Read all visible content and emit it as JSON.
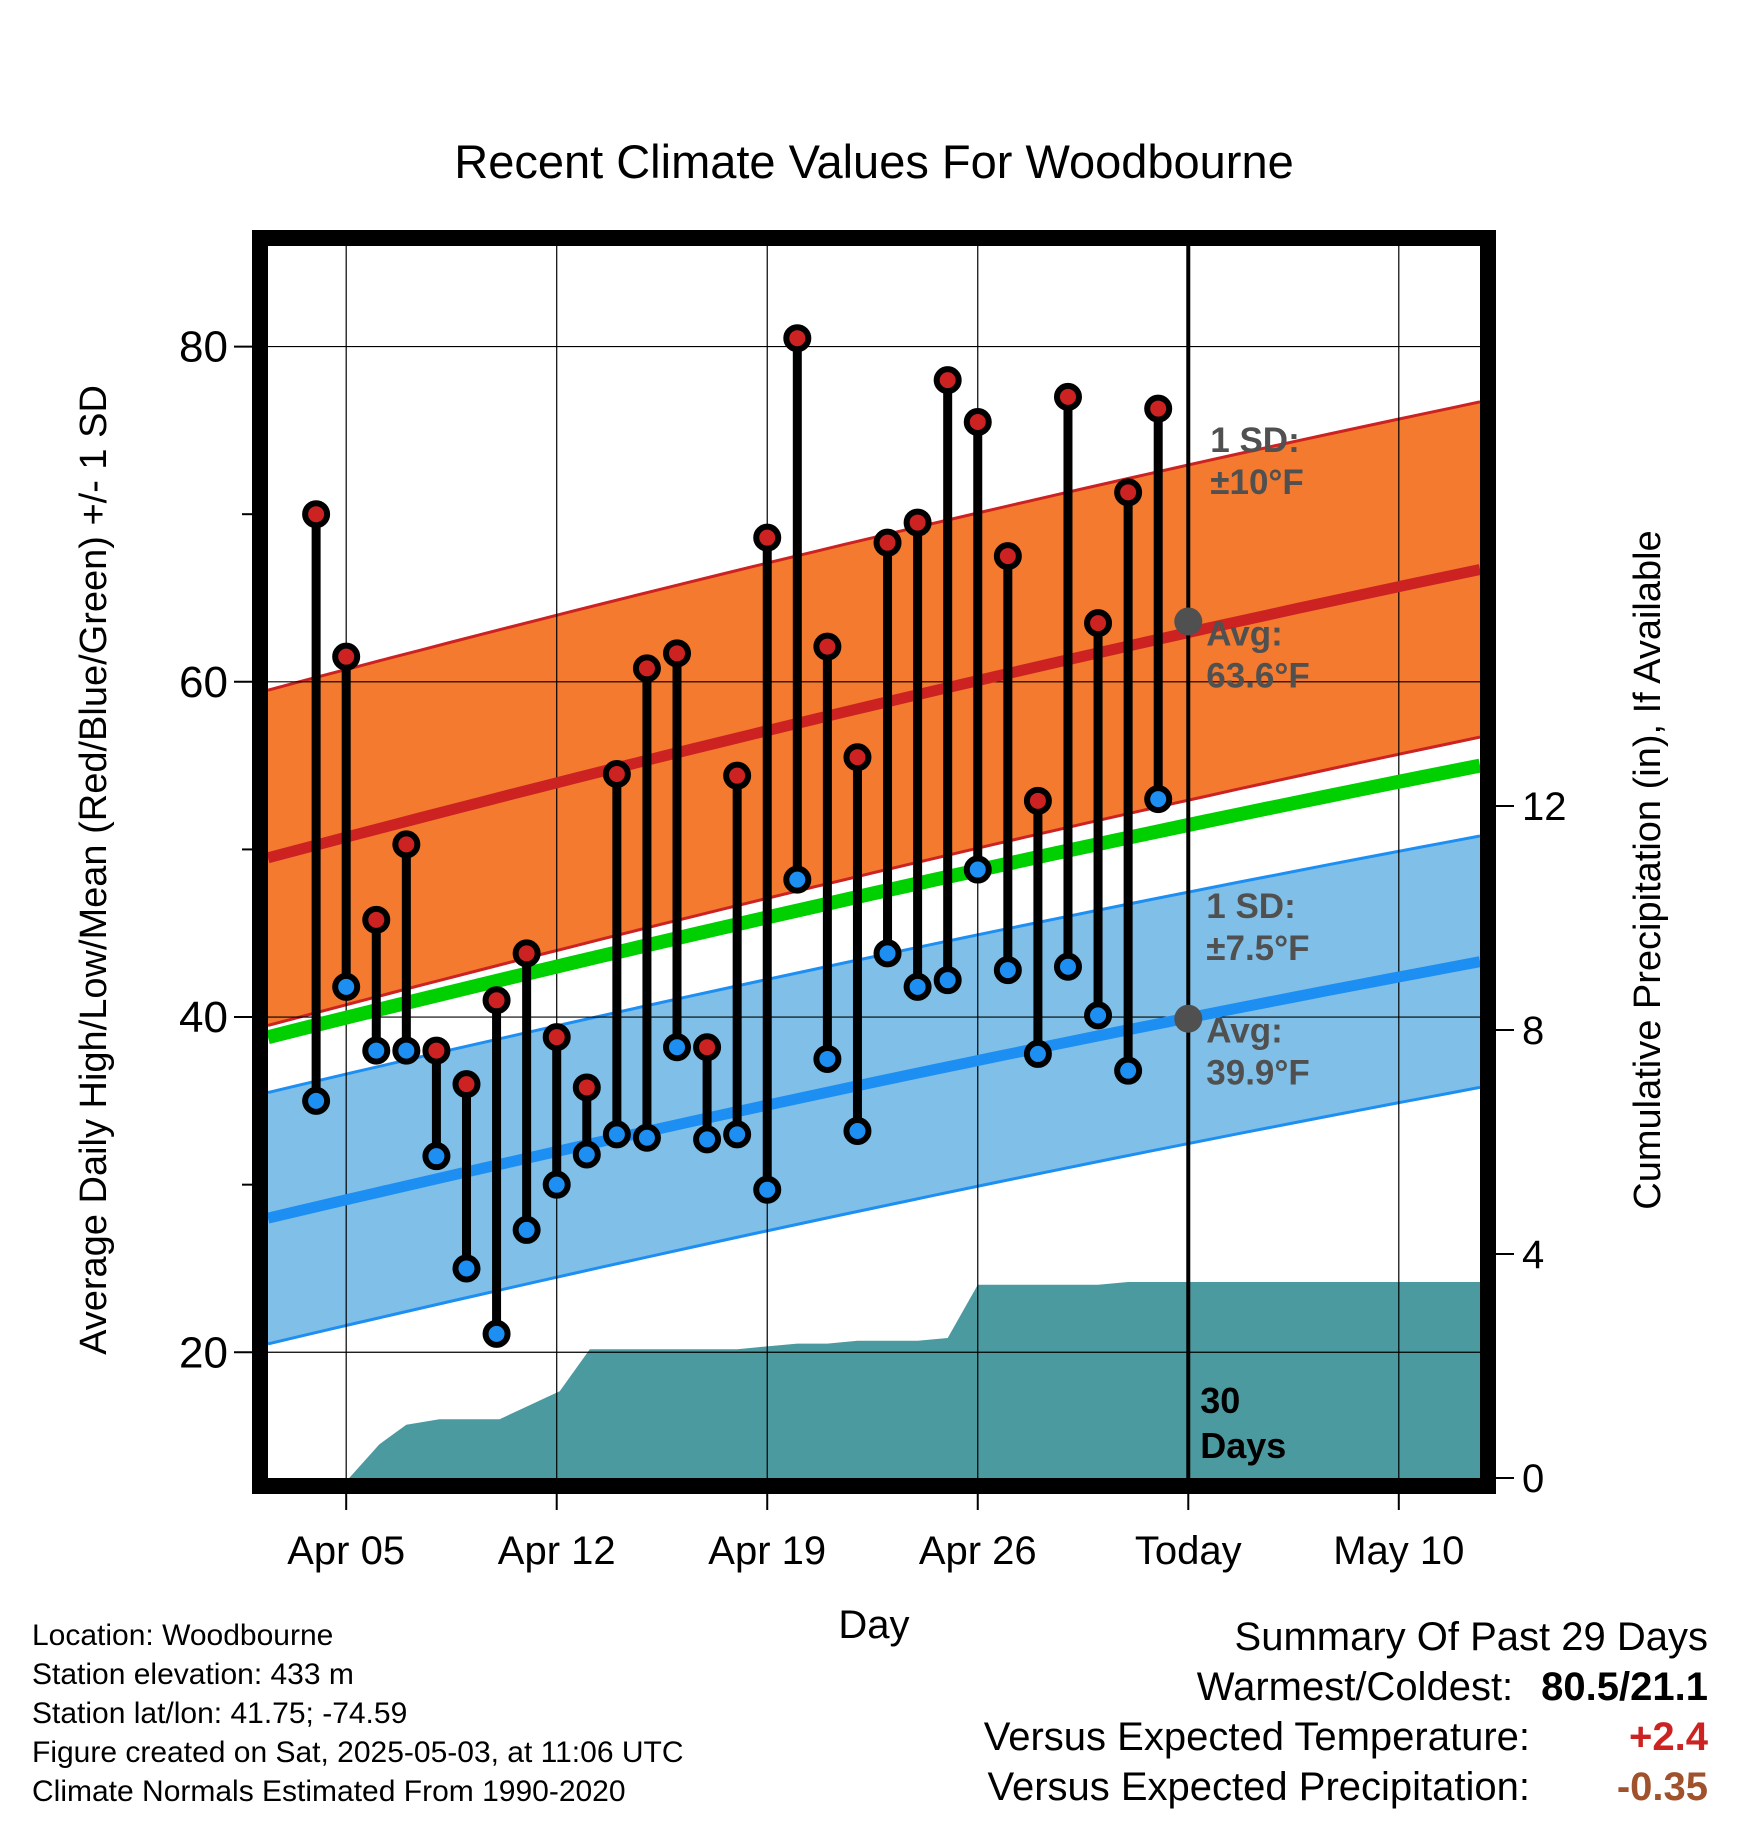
{
  "chart_data": {
    "type": "line",
    "title": "Recent Climate Values For Woodbourne",
    "xlabel": "Day",
    "ylabel": "Average Daily High/Low/Mean (Red/Blue/Green) +/- 1 SD",
    "y2label": "Cumulative Precipitation (in), If Available",
    "x_tick_labels": [
      "Apr 05",
      "Apr 12",
      "Apr 19",
      "Apr 26",
      "Today",
      "May 10"
    ],
    "x_tick_days": [
      2,
      9,
      16,
      23,
      30,
      37
    ],
    "xlim_days": [
      -0.6,
      39.7
    ],
    "ylim": [
      12.5,
      86
    ],
    "y_ticks": [
      20,
      40,
      60,
      80
    ],
    "y_minor_ticks": [
      30,
      50,
      70
    ],
    "y2lim": [
      0,
      22
    ],
    "y2_ticks": [
      0,
      4,
      8,
      12
    ],
    "today_day": 30,
    "today_label": [
      "30",
      "Days"
    ],
    "normals": {
      "high_mean": [
        49.5,
        66.7
      ],
      "high_sd": 10,
      "low_mean": [
        28.0,
        43.3
      ],
      "low_sd": 7.5,
      "mean": [
        38.8,
        55.0
      ]
    },
    "annotations": {
      "high_sd": [
        "1 SD:",
        "±10°F"
      ],
      "high_avg": [
        "Avg:",
        "63.6°F"
      ],
      "low_sd": [
        "1 SD:",
        "±7.5°F"
      ],
      "low_avg": [
        "Avg:",
        "39.9°F"
      ],
      "high_avg_value": 63.6,
      "low_avg_value": 39.9
    },
    "daily_high": [
      70.0,
      61.5,
      45.8,
      50.3,
      38.0,
      36.0,
      41.0,
      43.8,
      38.8,
      35.8,
      54.5,
      60.8,
      61.7,
      38.2,
      54.4,
      68.6,
      80.5,
      62.1,
      55.5,
      68.3,
      69.5,
      78.0,
      75.5,
      67.5,
      52.9,
      77.0,
      63.5,
      71.3,
      76.3
    ],
    "daily_low": [
      35.0,
      41.8,
      38.0,
      38.0,
      31.7,
      25.0,
      21.1,
      27.3,
      30.0,
      31.8,
      33.0,
      32.8,
      38.2,
      32.7,
      33.0,
      29.7,
      48.2,
      37.5,
      33.2,
      43.8,
      41.8,
      42.2,
      48.8,
      42.8,
      37.8,
      43.0,
      40.1,
      36.8,
      53.0
    ],
    "precip_x": [
      0,
      2.1,
      3.1,
      4.0,
      5.1,
      6.1,
      7.1,
      8.1,
      9.1,
      10.1,
      11,
      12,
      13,
      14,
      15,
      16,
      17,
      18,
      19,
      20,
      21,
      22,
      23,
      24,
      25,
      26,
      27,
      28,
      29,
      30,
      39.7
    ],
    "precip_cum": [
      0,
      0,
      0.6,
      0.95,
      1.05,
      1.05,
      1.05,
      1.3,
      1.55,
      2.3,
      2.3,
      2.3,
      2.3,
      2.3,
      2.3,
      2.35,
      2.4,
      2.4,
      2.45,
      2.45,
      2.45,
      2.5,
      3.45,
      3.45,
      3.45,
      3.45,
      3.45,
      3.5,
      3.5,
      3.5,
      3.5
    ],
    "colors": {
      "high": "#cc2222",
      "high_band": "#f37a2f",
      "low": "#1e8ff2",
      "low_band": "#80c0e8",
      "mean": "#00d000",
      "precip": "#4a9aa0",
      "annotation": "#505050"
    }
  },
  "footer": {
    "location": "Location: Woodbourne",
    "elevation": "Station elevation: 433 m",
    "latlon": "Station lat/lon: 41.75; -74.59",
    "created": "Figure created on Sat, 2025-05-03, at 11:06 UTC",
    "normals": "Climate Normals Estimated From 1990-2020"
  },
  "summary": {
    "title": "Summary Of Past 29 Days",
    "warmest_label": "Warmest/Coldest:",
    "warmest_value": "80.5/21.1",
    "temp_label": "Versus Expected Temperature:",
    "temp_value": "+2.4",
    "temp_color": "#cc2222",
    "precip_label": "Versus Expected Precipitation:",
    "precip_value": "-0.35",
    "precip_color": "#a0522d"
  }
}
